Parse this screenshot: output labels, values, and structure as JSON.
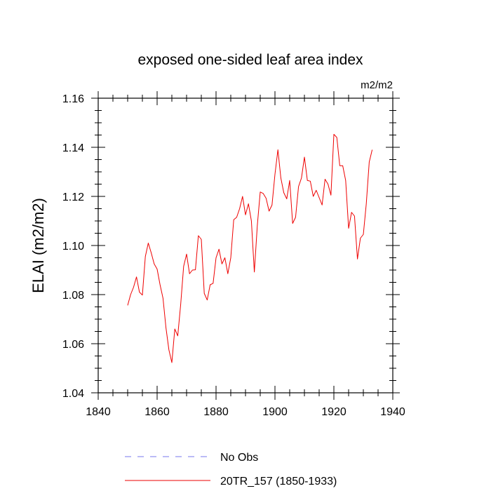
{
  "chart_data": {
    "type": "line",
    "title": "exposed one-sided leaf area index",
    "units": "m2/m2",
    "ylabel": "ELAI  (m2/m2)",
    "xlabel": "",
    "xlim": [
      1840,
      1940
    ],
    "ylim": [
      1.04,
      1.16
    ],
    "xticks": [
      1840,
      1860,
      1880,
      1900,
      1920,
      1940
    ],
    "xtick_labels": [
      "1840",
      "1860",
      "1880",
      "1900",
      "1920",
      "1940"
    ],
    "yticks": [
      1.04,
      1.06,
      1.08,
      1.1,
      1.12,
      1.14,
      1.16
    ],
    "ytick_labels": [
      "1.04",
      "1.06",
      "1.08",
      "1.10",
      "1.12",
      "1.14",
      "1.16"
    ],
    "grid": false,
    "legend_position": "bottom",
    "series": [
      {
        "name": "No Obs",
        "color": "#7777ee",
        "style": "dashed",
        "x": [],
        "values": []
      },
      {
        "name": "20TR_157 (1850-1933)",
        "color": "#ee0000",
        "style": "solid",
        "x": [
          1850,
          1851,
          1852,
          1853,
          1854,
          1855,
          1856,
          1857,
          1858,
          1859,
          1860,
          1861,
          1862,
          1863,
          1864,
          1865,
          1866,
          1867,
          1868,
          1869,
          1870,
          1871,
          1872,
          1873,
          1874,
          1875,
          1876,
          1877,
          1878,
          1879,
          1880,
          1881,
          1882,
          1883,
          1884,
          1885,
          1886,
          1887,
          1888,
          1889,
          1890,
          1891,
          1892,
          1893,
          1894,
          1895,
          1896,
          1897,
          1898,
          1899,
          1900,
          1901,
          1902,
          1903,
          1904,
          1905,
          1906,
          1907,
          1908,
          1909,
          1910,
          1911,
          1912,
          1913,
          1914,
          1915,
          1916,
          1917,
          1918,
          1919,
          1920,
          1921,
          1922,
          1923,
          1924,
          1925,
          1926,
          1927,
          1928,
          1929,
          1930,
          1931,
          1932,
          1933
        ],
        "values": [
          1.0756,
          1.08,
          1.083,
          1.0872,
          1.081,
          1.0798,
          1.0955,
          1.101,
          1.097,
          1.0925,
          1.0904,
          1.084,
          1.0785,
          1.0665,
          1.0575,
          1.0523,
          1.066,
          1.0632,
          1.076,
          1.0915,
          1.0965,
          1.0885,
          1.09,
          1.0901,
          1.104,
          1.1025,
          1.0805,
          1.0778,
          1.084,
          1.0846,
          1.095,
          1.0985,
          1.0925,
          1.095,
          1.0885,
          1.095,
          1.1105,
          1.1115,
          1.115,
          1.12,
          1.1125,
          1.117,
          1.11,
          1.0892,
          1.108,
          1.1218,
          1.1212,
          1.1192,
          1.114,
          1.1165,
          1.129,
          1.139,
          1.1275,
          1.1215,
          1.119,
          1.1265,
          1.109,
          1.1115,
          1.124,
          1.1275,
          1.136,
          1.1265,
          1.1262,
          1.12,
          1.1225,
          1.1195,
          1.1165,
          1.127,
          1.125,
          1.1205,
          1.1453,
          1.144,
          1.1325,
          1.1325,
          1.1265,
          1.107,
          1.1135,
          1.112,
          1.0945,
          1.103,
          1.1045,
          1.117,
          1.134,
          1.139
        ]
      }
    ]
  }
}
